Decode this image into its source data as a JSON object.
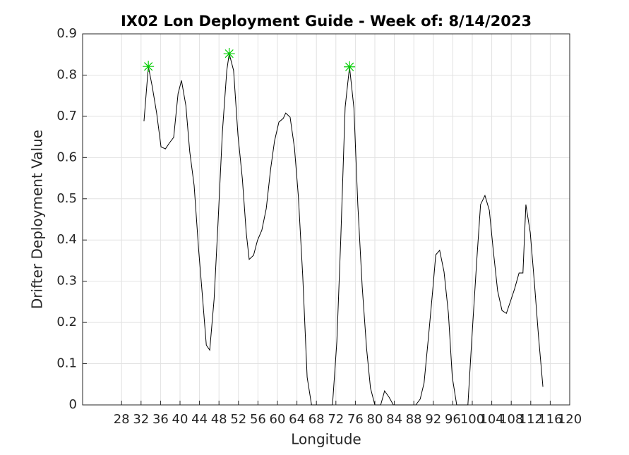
{
  "chart_data": {
    "type": "line",
    "title": "IX02 Lon Deployment Guide - Week of: 8/14/2023",
    "xlabel": "Longitude",
    "ylabel": "Drifter Deployment Value",
    "xlim": [
      20,
      120
    ],
    "ylim": [
      0,
      0.9
    ],
    "xticks": [
      28,
      32,
      36,
      40,
      44,
      48,
      52,
      56,
      60,
      64,
      68,
      72,
      76,
      80,
      84,
      88,
      92,
      96,
      100,
      104,
      108,
      112,
      116,
      120
    ],
    "yticks": [
      0,
      0.1,
      0.2,
      0.3,
      0.4,
      0.5,
      0.6,
      0.7,
      0.8,
      0.9
    ],
    "grid": true,
    "series": [
      {
        "color": "#000000",
        "x": [
          32.6,
          33.5,
          34.3,
          35.2,
          36.1,
          37.0,
          37.8,
          38.7,
          39.6,
          40.3,
          41.2,
          42.0,
          42.9,
          43.8,
          44.6,
          45.4,
          46.1,
          47.0,
          47.8,
          48.7,
          49.6,
          50.1,
          51.0,
          51.9,
          52.8,
          53.6,
          54.2,
          55.1,
          55.9,
          56.8,
          57.7,
          58.6,
          59.4,
          60.3,
          61.2,
          61.7,
          62.6,
          63.5,
          64.3,
          65.2,
          66.1,
          67.0,
          71.3,
          72.2,
          73.0,
          73.9,
          74.8,
          75.7,
          76.5,
          77.4,
          78.3,
          79.1,
          80.0,
          81.2,
          82.0,
          82.9,
          83.8,
          88.4,
          89.3,
          90.1,
          91.0,
          91.9,
          92.5,
          93.3,
          94.2,
          95.1,
          95.9,
          96.8,
          99.1,
          99.9,
          100.9,
          101.7,
          102.6,
          103.5,
          104.3,
          105.2,
          106.1,
          107.0,
          107.8,
          108.7,
          109.6,
          110.4,
          111.0,
          111.9,
          112.8,
          113.6,
          114.5
        ],
        "values": [
          0.688,
          0.821,
          0.772,
          0.708,
          0.626,
          0.621,
          0.635,
          0.649,
          0.755,
          0.787,
          0.726,
          0.614,
          0.532,
          0.38,
          0.264,
          0.145,
          0.133,
          0.257,
          0.441,
          0.662,
          0.811,
          0.852,
          0.811,
          0.654,
          0.548,
          0.417,
          0.353,
          0.363,
          0.399,
          0.424,
          0.476,
          0.572,
          0.64,
          0.686,
          0.695,
          0.708,
          0.698,
          0.623,
          0.505,
          0.311,
          0.067,
          0,
          0,
          0.154,
          0.402,
          0.722,
          0.82,
          0.72,
          0.486,
          0.287,
          0.137,
          0.041,
          0,
          0,
          0.034,
          0.019,
          0,
          0,
          0.014,
          0.053,
          0.164,
          0.281,
          0.364,
          0.375,
          0.323,
          0.222,
          0.067,
          0,
          0,
          0.159,
          0.347,
          0.486,
          0.508,
          0.472,
          0.376,
          0.277,
          0.229,
          0.222,
          0.25,
          0.282,
          0.32,
          0.32,
          0.486,
          0.418,
          0.289,
          0.166,
          0.044
        ]
      },
      {
        "color": "#00cc00",
        "marker": "asterisk",
        "x": [
          33.5,
          50.1,
          74.8
        ],
        "values": [
          0.821,
          0.852,
          0.82
        ]
      }
    ]
  }
}
